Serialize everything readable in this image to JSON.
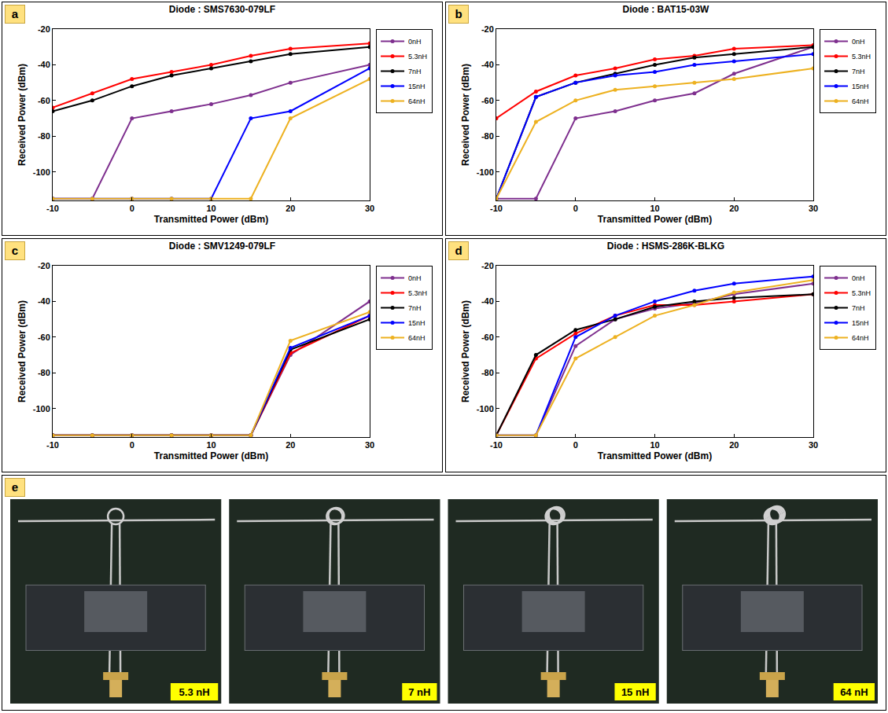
{
  "chart_data": [
    {
      "panel": "a",
      "type": "line",
      "title": "Diode : SMS7630-079LF",
      "x_label": "Transmitted Power (dBm)",
      "y_label": "Received Power (dBm)",
      "x": [
        -10,
        -5,
        0,
        5,
        10,
        15,
        20,
        30
      ],
      "xlim": [
        -10,
        30
      ],
      "xticks": [
        -10,
        0,
        10,
        20,
        30
      ],
      "ylim": [
        -116,
        -20
      ],
      "yticks": [
        -100,
        -80,
        -60,
        -40,
        -20
      ],
      "grid": false,
      "legend": "right",
      "marker": "circle",
      "series": [
        {
          "name": "0nH",
          "color": "#7e2f8e",
          "values": [
            -115,
            -115,
            -70,
            -66,
            -62,
            -57,
            -50,
            -40
          ]
        },
        {
          "name": "5.3nH",
          "color": "#ff0000",
          "values": [
            -64,
            -56,
            -48,
            -44,
            -40,
            -35,
            -31,
            -28
          ]
        },
        {
          "name": "7nH",
          "color": "#000000",
          "values": [
            -66,
            -60,
            -52,
            -46,
            -42,
            -38,
            -34,
            -30
          ]
        },
        {
          "name": "15nH",
          "color": "#0000ff",
          "values": [
            -115,
            -115,
            -115,
            -115,
            -115,
            -70,
            -66,
            -42
          ]
        },
        {
          "name": "64nH",
          "color": "#edb120",
          "values": [
            -115,
            -115,
            -115,
            -115,
            -115,
            -115,
            -70,
            -48
          ]
        }
      ]
    },
    {
      "panel": "b",
      "type": "line",
      "title": "Diode : BAT15-03W",
      "x_label": "Transmitted Power (dBm)",
      "y_label": "Received Power (dBm)",
      "x": [
        -10,
        -5,
        0,
        5,
        10,
        15,
        20,
        30
      ],
      "xlim": [
        -10,
        30
      ],
      "xticks": [
        -10,
        0,
        10,
        20,
        30
      ],
      "ylim": [
        -116,
        -20
      ],
      "yticks": [
        -100,
        -80,
        -60,
        -40,
        -20
      ],
      "grid": false,
      "legend": "right",
      "marker": "circle",
      "series": [
        {
          "name": "0nH",
          "color": "#7e2f8e",
          "values": [
            -115,
            -115,
            -70,
            -66,
            -60,
            -56,
            -45,
            -30
          ]
        },
        {
          "name": "5.3nH",
          "color": "#ff0000",
          "values": [
            -70,
            -55,
            -46,
            -42,
            -37,
            -35,
            -31,
            -29
          ]
        },
        {
          "name": "7nH",
          "color": "#000000",
          "values": [
            -115,
            -58,
            -50,
            -45,
            -40,
            -36,
            -34,
            -30
          ]
        },
        {
          "name": "15nH",
          "color": "#0000ff",
          "values": [
            -115,
            -58,
            -50,
            -46,
            -44,
            -40,
            -38,
            -34
          ]
        },
        {
          "name": "64nH",
          "color": "#edb120",
          "values": [
            -115,
            -72,
            -60,
            -54,
            -52,
            -50,
            -48,
            -42
          ]
        }
      ]
    },
    {
      "panel": "c",
      "type": "line",
      "title": "Diode : SMV1249-079LF",
      "x_label": "Transmitted Power (dBm)",
      "y_label": "Received Power (dBm)",
      "x": [
        -10,
        -5,
        0,
        5,
        10,
        15,
        20,
        30
      ],
      "xlim": [
        -10,
        30
      ],
      "xticks": [
        -10,
        0,
        10,
        20,
        30
      ],
      "ylim": [
        -116,
        -20
      ],
      "yticks": [
        -100,
        -80,
        -60,
        -40,
        -20
      ],
      "grid": false,
      "legend": "right",
      "marker": "circle",
      "series": [
        {
          "name": "0nH",
          "color": "#7e2f8e",
          "values": [
            -115,
            -115,
            -115,
            -115,
            -115,
            -115,
            -70,
            -40
          ]
        },
        {
          "name": "5.3nH",
          "color": "#ff0000",
          "values": [
            -115,
            -115,
            -115,
            -115,
            -115,
            -115,
            -69,
            -48
          ]
        },
        {
          "name": "7nH",
          "color": "#000000",
          "values": [
            -115,
            -115,
            -115,
            -115,
            -115,
            -115,
            -67,
            -50
          ]
        },
        {
          "name": "15nH",
          "color": "#0000ff",
          "values": [
            -115,
            -115,
            -115,
            -115,
            -115,
            -115,
            -66,
            -48
          ]
        },
        {
          "name": "64nH",
          "color": "#edb120",
          "values": [
            -115,
            -115,
            -115,
            -115,
            -115,
            -115,
            -62,
            -46
          ]
        }
      ]
    },
    {
      "panel": "d",
      "type": "line",
      "title": "Diode : HSMS-286K-BLKG",
      "x_label": "Transmitted Power (dBm)",
      "y_label": "Received Power (dBm)",
      "x": [
        -10,
        -5,
        0,
        5,
        10,
        15,
        20,
        30
      ],
      "xlim": [
        -10,
        30
      ],
      "xticks": [
        -10,
        0,
        10,
        20,
        30
      ],
      "ylim": [
        -116,
        -20
      ],
      "yticks": [
        -100,
        -80,
        -60,
        -40,
        -20
      ],
      "grid": false,
      "legend": "right",
      "marker": "circle",
      "series": [
        {
          "name": "0nH",
          "color": "#7e2f8e",
          "values": [
            -115,
            -115,
            -65,
            -50,
            -44,
            -41,
            -36,
            -30
          ]
        },
        {
          "name": "5.3nH",
          "color": "#ff0000",
          "values": [
            -115,
            -72,
            -58,
            -48,
            -42,
            -42,
            -40,
            -36
          ]
        },
        {
          "name": "7nH",
          "color": "#000000",
          "values": [
            -115,
            -70,
            -56,
            -50,
            -43,
            -40,
            -38,
            -36
          ]
        },
        {
          "name": "15nH",
          "color": "#0000ff",
          "values": [
            -115,
            -115,
            -60,
            -48,
            -40,
            -34,
            -30,
            -26
          ]
        },
        {
          "name": "64nH",
          "color": "#edb120",
          "values": [
            -115,
            -115,
            -72,
            -60,
            -48,
            -42,
            -35,
            -28
          ]
        }
      ]
    }
  ],
  "photo_panel": {
    "panel": "e",
    "labels": [
      "5.3 nH",
      "7 nH",
      "15 nH",
      "64 nH"
    ]
  }
}
